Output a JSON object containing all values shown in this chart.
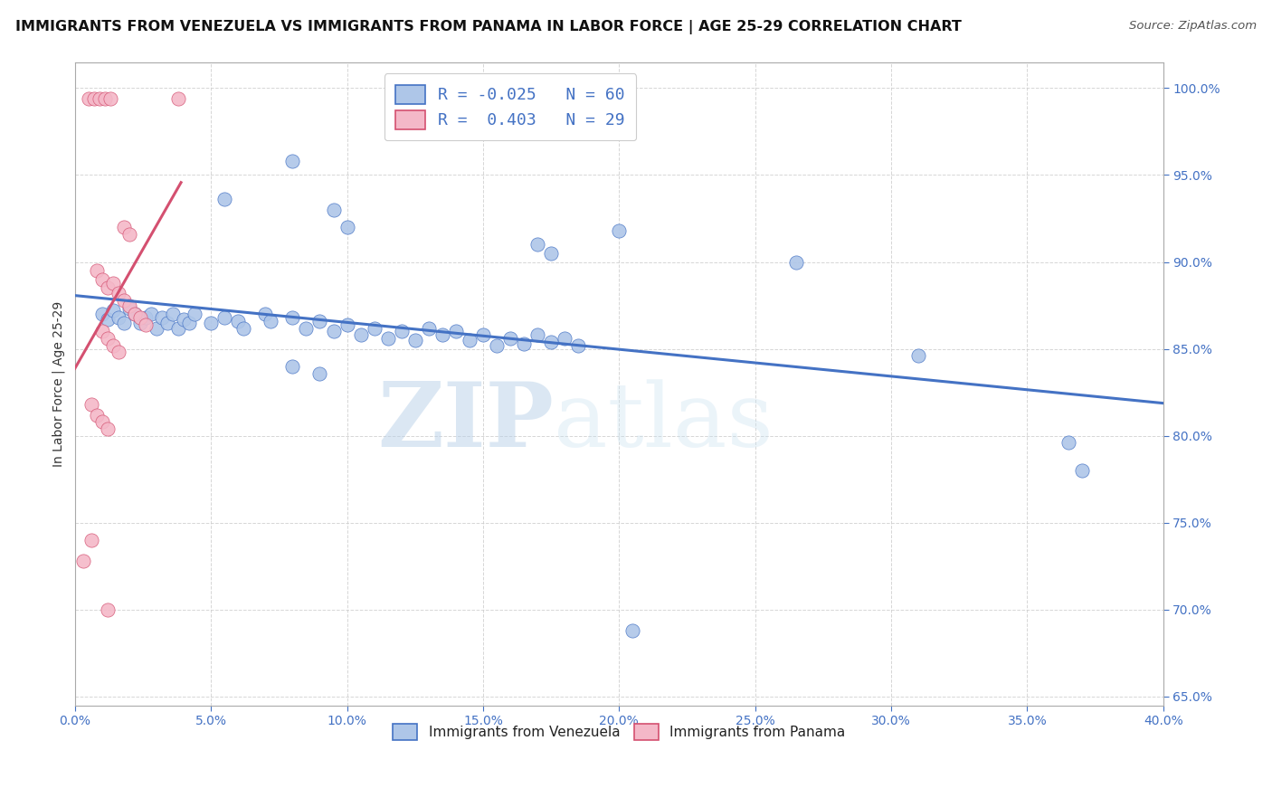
{
  "title": "IMMIGRANTS FROM VENEZUELA VS IMMIGRANTS FROM PANAMA IN LABOR FORCE | AGE 25-29 CORRELATION CHART",
  "source": "Source: ZipAtlas.com",
  "ylabel": "In Labor Force | Age 25-29",
  "xlim": [
    0.0,
    0.4
  ],
  "ylim": [
    0.645,
    1.015
  ],
  "xticks": [
    0.0,
    0.05,
    0.1,
    0.15,
    0.2,
    0.25,
    0.3,
    0.35,
    0.4
  ],
  "yticks": [
    0.65,
    0.7,
    0.75,
    0.8,
    0.85,
    0.9,
    0.95,
    1.0
  ],
  "blue_R": -0.025,
  "blue_N": 60,
  "pink_R": 0.403,
  "pink_N": 29,
  "blue_color": "#aec6e8",
  "pink_color": "#f4b8c8",
  "blue_line_color": "#4472c4",
  "pink_line_color": "#d45070",
  "blue_scatter": [
    [
      0.01,
      0.87
    ],
    [
      0.012,
      0.867
    ],
    [
      0.014,
      0.872
    ],
    [
      0.016,
      0.868
    ],
    [
      0.018,
      0.865
    ],
    [
      0.02,
      0.873
    ],
    [
      0.022,
      0.87
    ],
    [
      0.024,
      0.865
    ],
    [
      0.026,
      0.868
    ],
    [
      0.028,
      0.87
    ],
    [
      0.03,
      0.862
    ],
    [
      0.032,
      0.868
    ],
    [
      0.034,
      0.865
    ],
    [
      0.036,
      0.87
    ],
    [
      0.038,
      0.862
    ],
    [
      0.04,
      0.867
    ],
    [
      0.042,
      0.865
    ],
    [
      0.044,
      0.87
    ],
    [
      0.05,
      0.865
    ],
    [
      0.055,
      0.868
    ],
    [
      0.06,
      0.866
    ],
    [
      0.062,
      0.862
    ],
    [
      0.07,
      0.87
    ],
    [
      0.072,
      0.866
    ],
    [
      0.08,
      0.868
    ],
    [
      0.085,
      0.862
    ],
    [
      0.09,
      0.866
    ],
    [
      0.095,
      0.86
    ],
    [
      0.1,
      0.864
    ],
    [
      0.105,
      0.858
    ],
    [
      0.11,
      0.862
    ],
    [
      0.115,
      0.856
    ],
    [
      0.12,
      0.86
    ],
    [
      0.125,
      0.855
    ],
    [
      0.13,
      0.862
    ],
    [
      0.135,
      0.858
    ],
    [
      0.14,
      0.86
    ],
    [
      0.145,
      0.855
    ],
    [
      0.15,
      0.858
    ],
    [
      0.155,
      0.852
    ],
    [
      0.16,
      0.856
    ],
    [
      0.165,
      0.853
    ],
    [
      0.17,
      0.858
    ],
    [
      0.175,
      0.854
    ],
    [
      0.18,
      0.856
    ],
    [
      0.185,
      0.852
    ],
    [
      0.055,
      0.936
    ],
    [
      0.08,
      0.958
    ],
    [
      0.095,
      0.93
    ],
    [
      0.1,
      0.92
    ],
    [
      0.17,
      0.91
    ],
    [
      0.175,
      0.905
    ],
    [
      0.2,
      0.918
    ],
    [
      0.265,
      0.9
    ],
    [
      0.08,
      0.84
    ],
    [
      0.09,
      0.836
    ],
    [
      0.31,
      0.846
    ],
    [
      0.365,
      0.796
    ],
    [
      0.37,
      0.78
    ],
    [
      0.205,
      0.688
    ]
  ],
  "pink_scatter": [
    [
      0.005,
      0.994
    ],
    [
      0.007,
      0.994
    ],
    [
      0.009,
      0.994
    ],
    [
      0.011,
      0.994
    ],
    [
      0.013,
      0.994
    ],
    [
      0.038,
      0.994
    ],
    [
      0.018,
      0.92
    ],
    [
      0.02,
      0.916
    ],
    [
      0.008,
      0.895
    ],
    [
      0.01,
      0.89
    ],
    [
      0.012,
      0.885
    ],
    [
      0.014,
      0.888
    ],
    [
      0.016,
      0.882
    ],
    [
      0.018,
      0.878
    ],
    [
      0.02,
      0.875
    ],
    [
      0.022,
      0.87
    ],
    [
      0.024,
      0.868
    ],
    [
      0.026,
      0.864
    ],
    [
      0.01,
      0.86
    ],
    [
      0.012,
      0.856
    ],
    [
      0.014,
      0.852
    ],
    [
      0.016,
      0.848
    ],
    [
      0.006,
      0.818
    ],
    [
      0.008,
      0.812
    ],
    [
      0.01,
      0.808
    ],
    [
      0.012,
      0.804
    ],
    [
      0.006,
      0.74
    ],
    [
      0.003,
      0.728
    ],
    [
      0.012,
      0.7
    ]
  ],
  "background_color": "#ffffff",
  "grid_color": "#cccccc",
  "watermark_zip": "ZIP",
  "watermark_atlas": "atlas",
  "title_fontsize": 11.5,
  "label_fontsize": 10,
  "tick_fontsize": 10,
  "legend_fontsize": 13
}
